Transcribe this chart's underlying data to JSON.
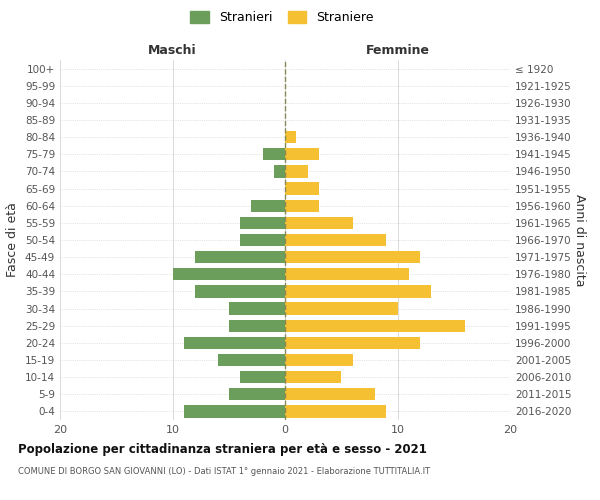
{
  "age_groups": [
    "100+",
    "95-99",
    "90-94",
    "85-89",
    "80-84",
    "75-79",
    "70-74",
    "65-69",
    "60-64",
    "55-59",
    "50-54",
    "45-49",
    "40-44",
    "35-39",
    "30-34",
    "25-29",
    "20-24",
    "15-19",
    "10-14",
    "5-9",
    "0-4"
  ],
  "birth_years": [
    "≤ 1920",
    "1921-1925",
    "1926-1930",
    "1931-1935",
    "1936-1940",
    "1941-1945",
    "1946-1950",
    "1951-1955",
    "1956-1960",
    "1961-1965",
    "1966-1970",
    "1971-1975",
    "1976-1980",
    "1981-1985",
    "1986-1990",
    "1991-1995",
    "1996-2000",
    "2001-2005",
    "2006-2010",
    "2011-2015",
    "2016-2020"
  ],
  "maschi": [
    0,
    0,
    0,
    0,
    0,
    2,
    1,
    0,
    3,
    4,
    4,
    8,
    10,
    8,
    5,
    5,
    9,
    6,
    4,
    5,
    9
  ],
  "femmine": [
    0,
    0,
    0,
    0,
    1,
    3,
    2,
    3,
    3,
    6,
    9,
    12,
    11,
    13,
    10,
    16,
    12,
    6,
    5,
    8,
    9
  ],
  "maschi_color": "#6a9e5a",
  "femmine_color": "#f5c132",
  "background_color": "#ffffff",
  "grid_color": "#cccccc",
  "dashed_line_color": "#888855",
  "xlim": 20,
  "title": "Popolazione per cittadinanza straniera per età e sesso - 2021",
  "subtitle": "COMUNE DI BORGO SAN GIOVANNI (LO) - Dati ISTAT 1° gennaio 2021 - Elaborazione TUTTITALIA.IT",
  "ylabel_left": "Fasce di età",
  "ylabel_right": "Anni di nascita",
  "maschi_label": "Stranieri",
  "femmine_label": "Straniere",
  "header_maschi": "Maschi",
  "header_femmine": "Femmine"
}
